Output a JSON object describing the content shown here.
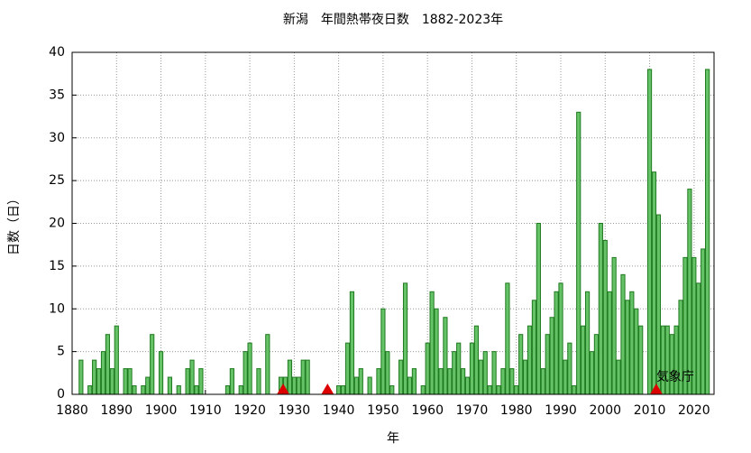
{
  "chart_data": {
    "type": "bar",
    "title": "新潟　年間熱帯夜日数　1882-2023年",
    "xlabel": "年",
    "ylabel": "日数（日）",
    "x": [
      1882,
      1883,
      1884,
      1885,
      1886,
      1887,
      1888,
      1889,
      1890,
      1891,
      1892,
      1893,
      1894,
      1895,
      1896,
      1897,
      1898,
      1899,
      1900,
      1901,
      1902,
      1903,
      1904,
      1905,
      1906,
      1907,
      1908,
      1909,
      1910,
      1911,
      1912,
      1913,
      1914,
      1915,
      1916,
      1917,
      1918,
      1919,
      1920,
      1921,
      1922,
      1923,
      1924,
      1925,
      1926,
      1927,
      1928,
      1929,
      1930,
      1931,
      1932,
      1933,
      1934,
      1935,
      1936,
      1937,
      1938,
      1939,
      1940,
      1941,
      1942,
      1943,
      1944,
      1945,
      1946,
      1947,
      1948,
      1949,
      1950,
      1951,
      1952,
      1953,
      1954,
      1955,
      1956,
      1957,
      1958,
      1959,
      1960,
      1961,
      1962,
      1963,
      1964,
      1965,
      1966,
      1967,
      1968,
      1969,
      1970,
      1971,
      1972,
      1973,
      1974,
      1975,
      1976,
      1977,
      1978,
      1979,
      1980,
      1981,
      1982,
      1983,
      1984,
      1985,
      1986,
      1987,
      1988,
      1989,
      1990,
      1991,
      1992,
      1993,
      1994,
      1995,
      1996,
      1997,
      1998,
      1999,
      2000,
      2001,
      2002,
      2003,
      2004,
      2005,
      2006,
      2007,
      2008,
      2009,
      2010,
      2011,
      2012,
      2013,
      2014,
      2015,
      2016,
      2017,
      2018,
      2019,
      2020,
      2021,
      2022,
      2023
    ],
    "values": [
      4,
      0,
      1,
      4,
      3,
      5,
      7,
      3,
      8,
      0,
      3,
      3,
      1,
      0,
      1,
      2,
      7,
      0,
      5,
      0,
      2,
      0,
      1,
      0,
      3,
      4,
      1,
      3,
      0,
      0,
      0,
      0,
      0,
      1,
      3,
      0,
      1,
      5,
      6,
      0,
      3,
      0,
      7,
      0,
      0,
      2,
      2,
      4,
      2,
      2,
      4,
      4,
      0,
      0,
      0,
      0,
      0,
      0,
      1,
      1,
      6,
      12,
      2,
      3,
      0,
      2,
      0,
      3,
      10,
      5,
      1,
      0,
      4,
      13,
      2,
      3,
      0,
      1,
      6,
      12,
      10,
      3,
      9,
      3,
      5,
      6,
      3,
      2,
      6,
      8,
      4,
      5,
      1,
      5,
      1,
      3,
      13,
      3,
      1,
      7,
      4,
      8,
      11,
      20,
      3,
      7,
      9,
      12,
      13,
      4,
      6,
      1,
      33,
      8,
      12,
      5,
      7,
      20,
      18,
      12,
      16,
      4,
      14,
      11,
      12,
      10,
      8,
      0,
      38,
      26,
      21,
      8,
      8,
      7,
      8,
      11,
      16,
      24,
      16,
      13,
      17,
      38
    ],
    "color": "#66c266",
    "edge_color": "#1f7a1f",
    "events_x": [
      1927.5,
      1937.5,
      2011.5
    ],
    "event_color": "#dd0000",
    "annotation": {
      "text": "気象庁",
      "x": 2011.5,
      "y": 1.8
    },
    "xlim": [
      1880,
      2024.5
    ],
    "xticks": [
      1880,
      1890,
      1900,
      1910,
      1920,
      1930,
      1940,
      1950,
      1960,
      1970,
      1980,
      1990,
      2000,
      2010,
      2020
    ],
    "ylim": [
      0,
      40
    ],
    "yticks": [
      0,
      5,
      10,
      15,
      20,
      25,
      30,
      35,
      40
    ],
    "grid": true
  }
}
